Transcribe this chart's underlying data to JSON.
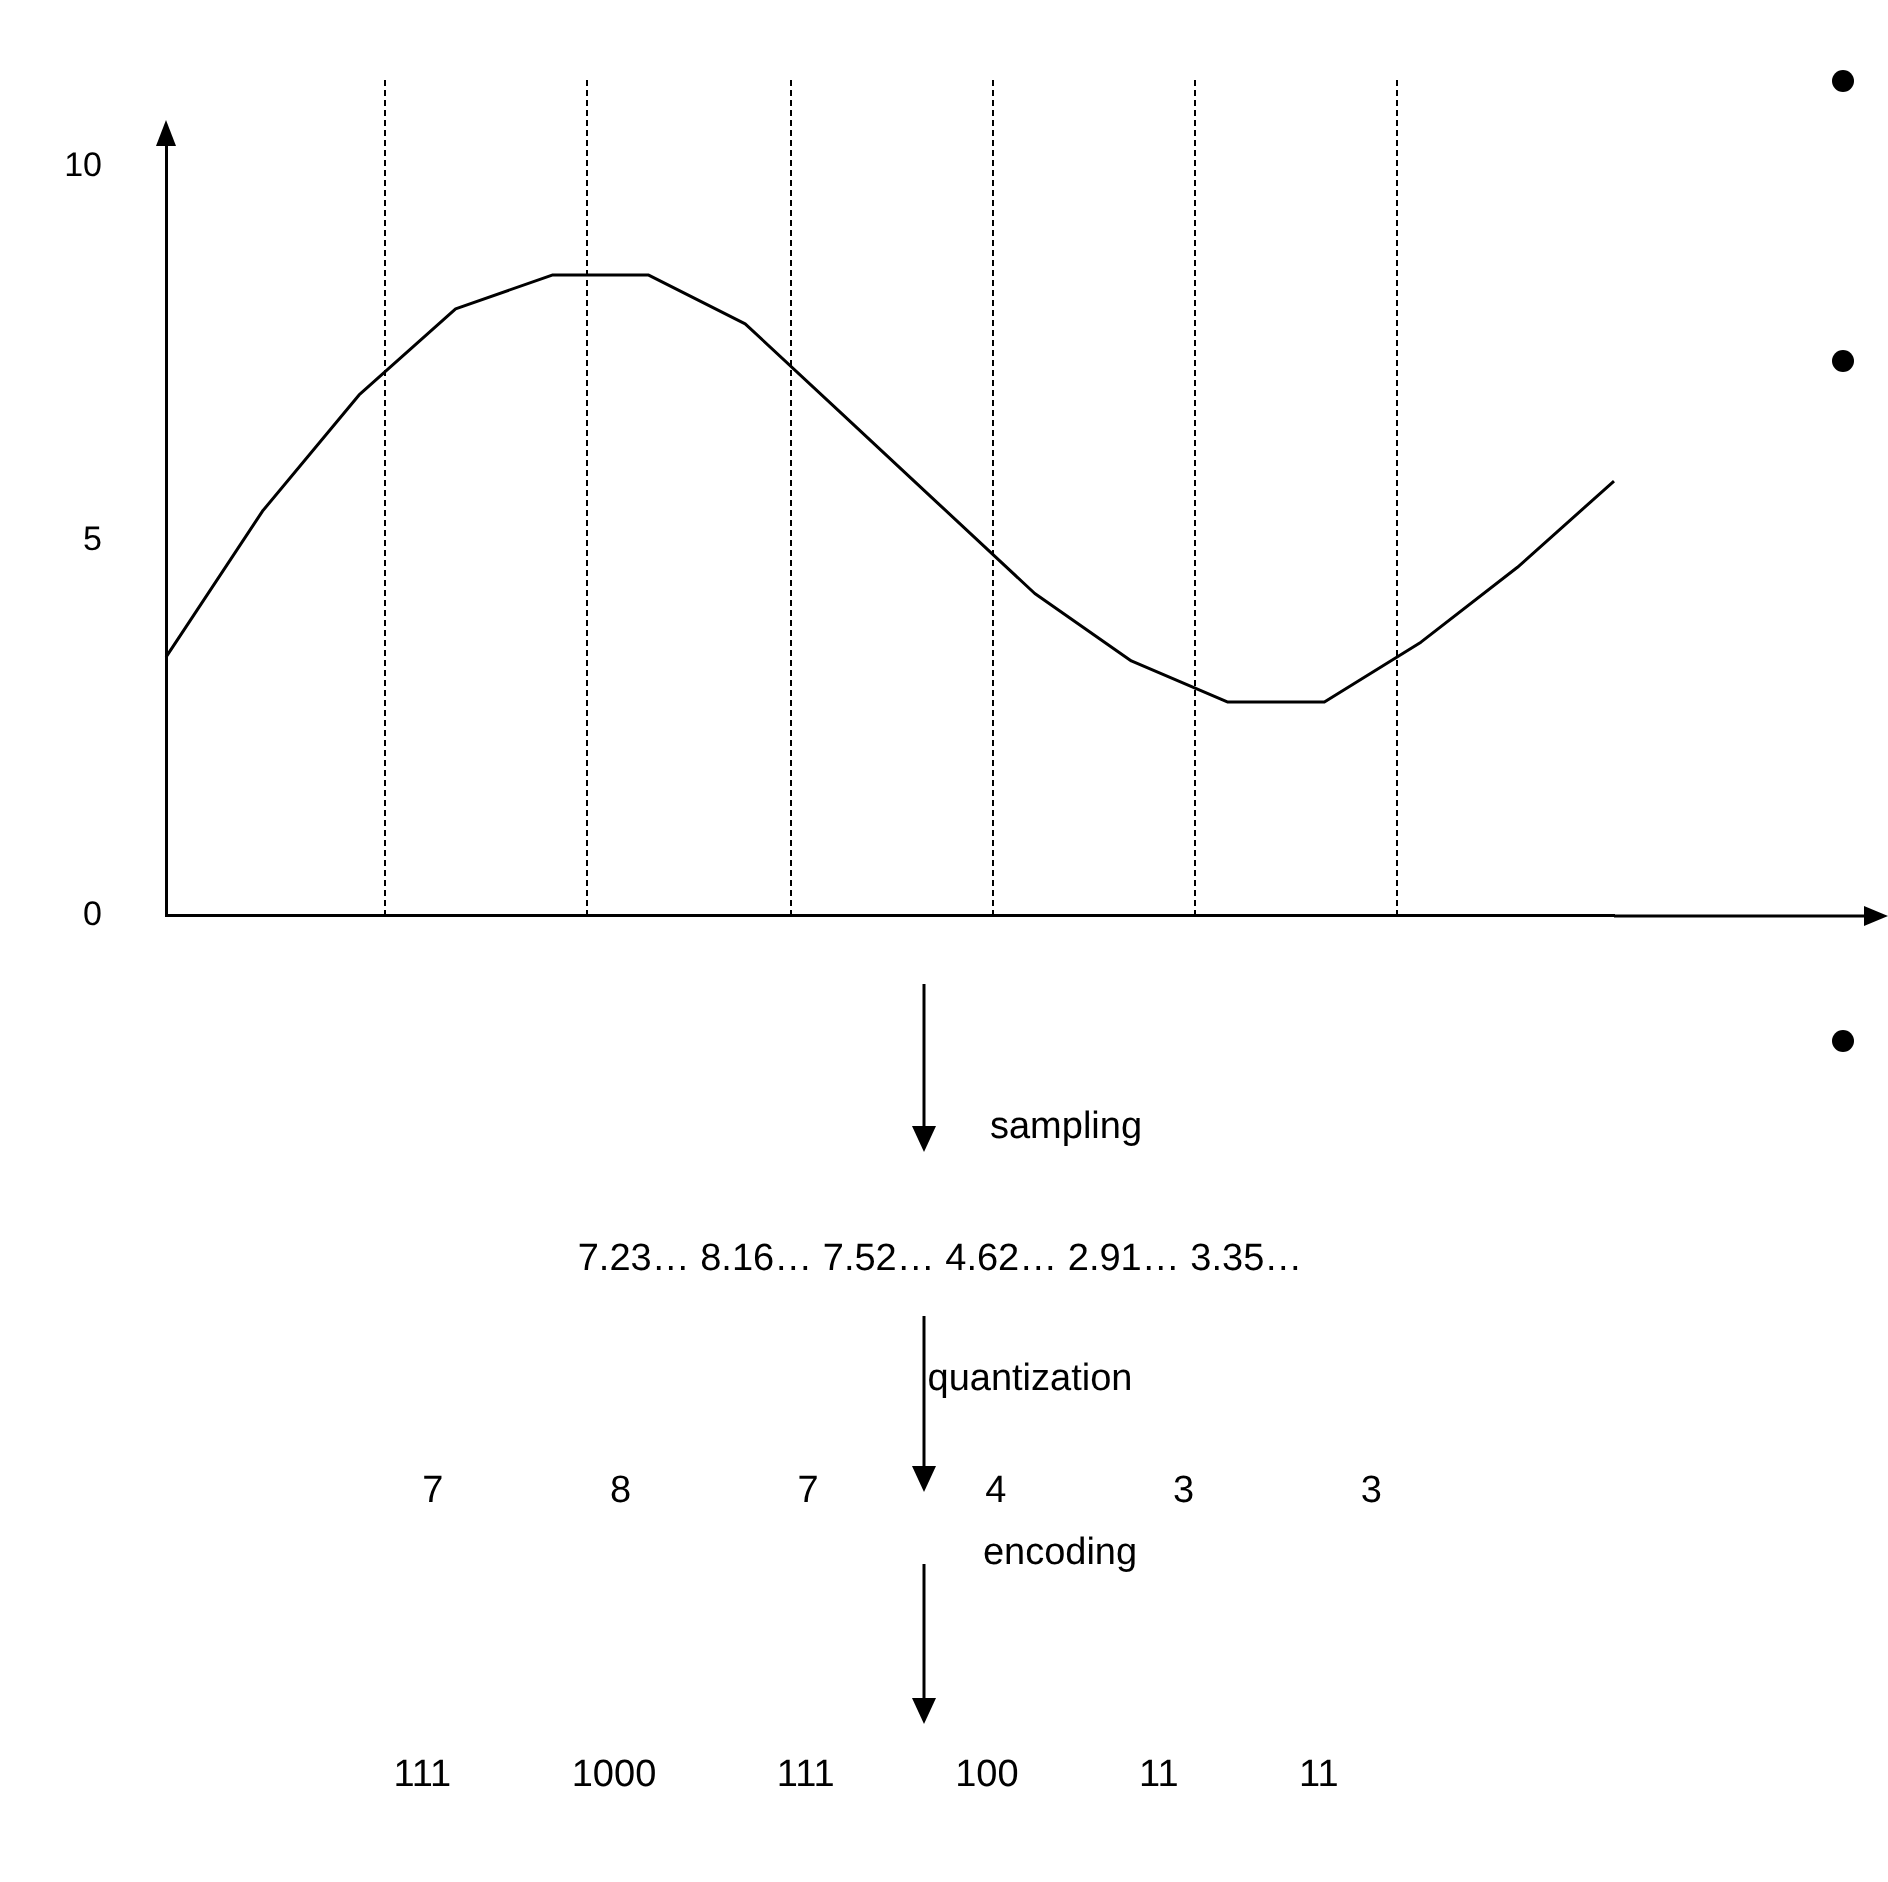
{
  "chart_data": {
    "type": "line",
    "categories": [
      null,
      null,
      null,
      null,
      null,
      null,
      null,
      null,
      null,
      null,
      null,
      null,
      null,
      null,
      null,
      null
    ],
    "series": [
      {
        "color": "#000000",
        "values": [
          3.45,
          5.4,
          6.95,
          8.1,
          8.55,
          8.55,
          7.9,
          6.7,
          5.5,
          4.3,
          3.4,
          2.85,
          2.85,
          3.65,
          4.65,
          5.8
        ]
      }
    ],
    "ylim": [
      0,
      10.3
    ],
    "yticks": [
      0,
      5,
      10
    ],
    "tick_labels": "y",
    "grid": false,
    "legend": false,
    "marker": "none",
    "line_style": "solid",
    "annotations": [
      "sampling",
      "7.23… 8.16… 7.52… 4.62… 2.91… 3.35…",
      "quantization",
      "7 8 7 4 3 3",
      "encoding",
      "111 1000 111 100 11 11"
    ]
  }
}
